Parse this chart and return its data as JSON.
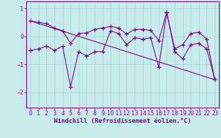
{
  "xlabel": "Windchill (Refroidissement éolien,°C)",
  "bg_color": "#c8ecec",
  "line_color": "#800080",
  "x_data": [
    0,
    1,
    2,
    3,
    4,
    5,
    6,
    7,
    8,
    9,
    10,
    11,
    12,
    13,
    14,
    15,
    16,
    17,
    18,
    19,
    20,
    21,
    22,
    23
  ],
  "y_data1": [
    -0.5,
    -0.45,
    -0.35,
    -0.5,
    -0.35,
    -1.8,
    -0.55,
    -0.7,
    -0.55,
    -0.55,
    0.2,
    0.1,
    -0.3,
    -0.05,
    -0.1,
    -0.05,
    -1.1,
    0.85,
    -0.55,
    -0.8,
    -0.3,
    -0.25,
    -0.45,
    -1.55
  ],
  "y_data2": [
    0.55,
    0.5,
    0.45,
    0.3,
    0.2,
    -0.25,
    0.1,
    0.12,
    0.25,
    0.3,
    0.35,
    0.3,
    0.08,
    0.25,
    0.25,
    0.22,
    -0.15,
    0.85,
    -0.45,
    -0.3,
    0.1,
    0.15,
    -0.1,
    -1.55
  ],
  "trend_x": [
    0,
    23
  ],
  "trend_y": [
    0.55,
    -1.55
  ],
  "ylim": [
    -2.55,
    1.25
  ],
  "xlim": [
    -0.5,
    23.5
  ],
  "yticks": [
    1,
    0,
    -1,
    -2
  ],
  "xticks": [
    0,
    1,
    2,
    3,
    4,
    5,
    6,
    7,
    8,
    9,
    10,
    11,
    12,
    13,
    14,
    15,
    16,
    17,
    18,
    19,
    20,
    21,
    22,
    23
  ],
  "grid_color": "#aad4d4",
  "font_color": "#800080",
  "label_fontsize": 6.5,
  "tick_fontsize": 6
}
